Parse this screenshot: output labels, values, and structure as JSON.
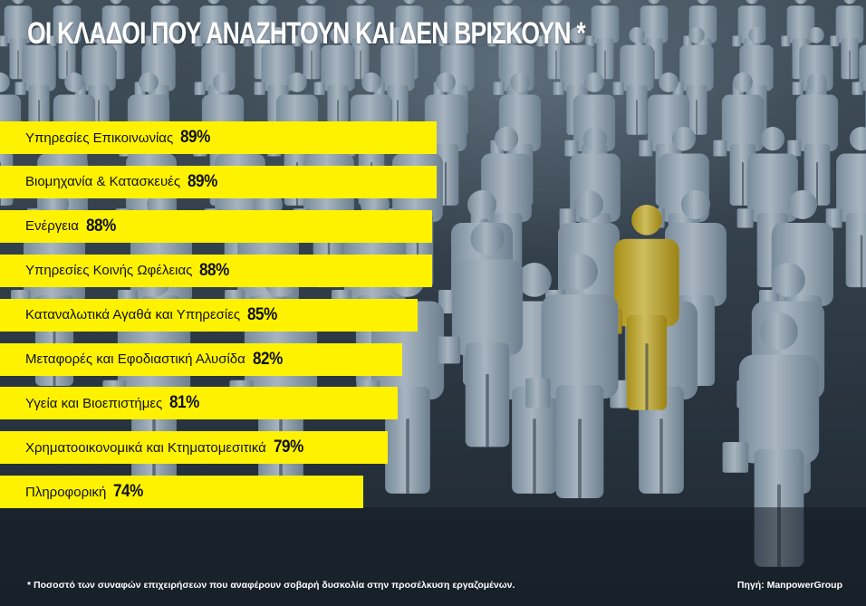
{
  "header": {
    "title": "ΟΙ ΚΛΑΔΟΙ ΠΟΥ ΑΝΑΖΗΤΟΥΝ ΚΑΙ ΔΕΝ ΒΡΙΣΚΟΥΝ *"
  },
  "chart_data": {
    "type": "bar",
    "orientation": "horizontal",
    "title": "ΟΙ ΚΛΑΔΟΙ ΠΟΥ ΑΝΑΖΗΤΟΥΝ ΚΑΙ ΔΕΝ ΒΡΙΣΚΟΥΝ *",
    "categories": [
      "Υπηρεσίες Επικοινωνίας",
      "Βιομηχανία & Κατασκευές",
      "Ενέργεια",
      "Υπηρεσίες Κοινής Ωφέλειας",
      "Καταναλωτικά Αγαθά και Υπηρεσίες",
      "Μεταφορές και Εφοδιαστική Αλυσίδα",
      "Υγεία και Βιοεπιστήμες",
      "Χρηματοοικονομικά και Κτηματομεσιτικά",
      "Πληροφορική"
    ],
    "values": [
      89,
      89,
      88,
      88,
      85,
      82,
      81,
      79,
      74
    ],
    "value_labels": [
      "89%",
      "89%",
      "88%",
      "88%",
      "85%",
      "82%",
      "81%",
      "79%",
      "74%"
    ],
    "unit": "%",
    "bar_color": "#fff200",
    "legend": false,
    "grid": false
  },
  "footer": {
    "note": "* Ποσοστό των συναφών επιχειρήσεων που αναφέρουν σοβαρή δυσκολία στην προσέλκυση εργαζομένων.",
    "source": "Πηγή: ManpowerGroup"
  },
  "colors": {
    "highlight_figure": "#e8cf3a",
    "crowd_figure": "#a9bccb"
  }
}
